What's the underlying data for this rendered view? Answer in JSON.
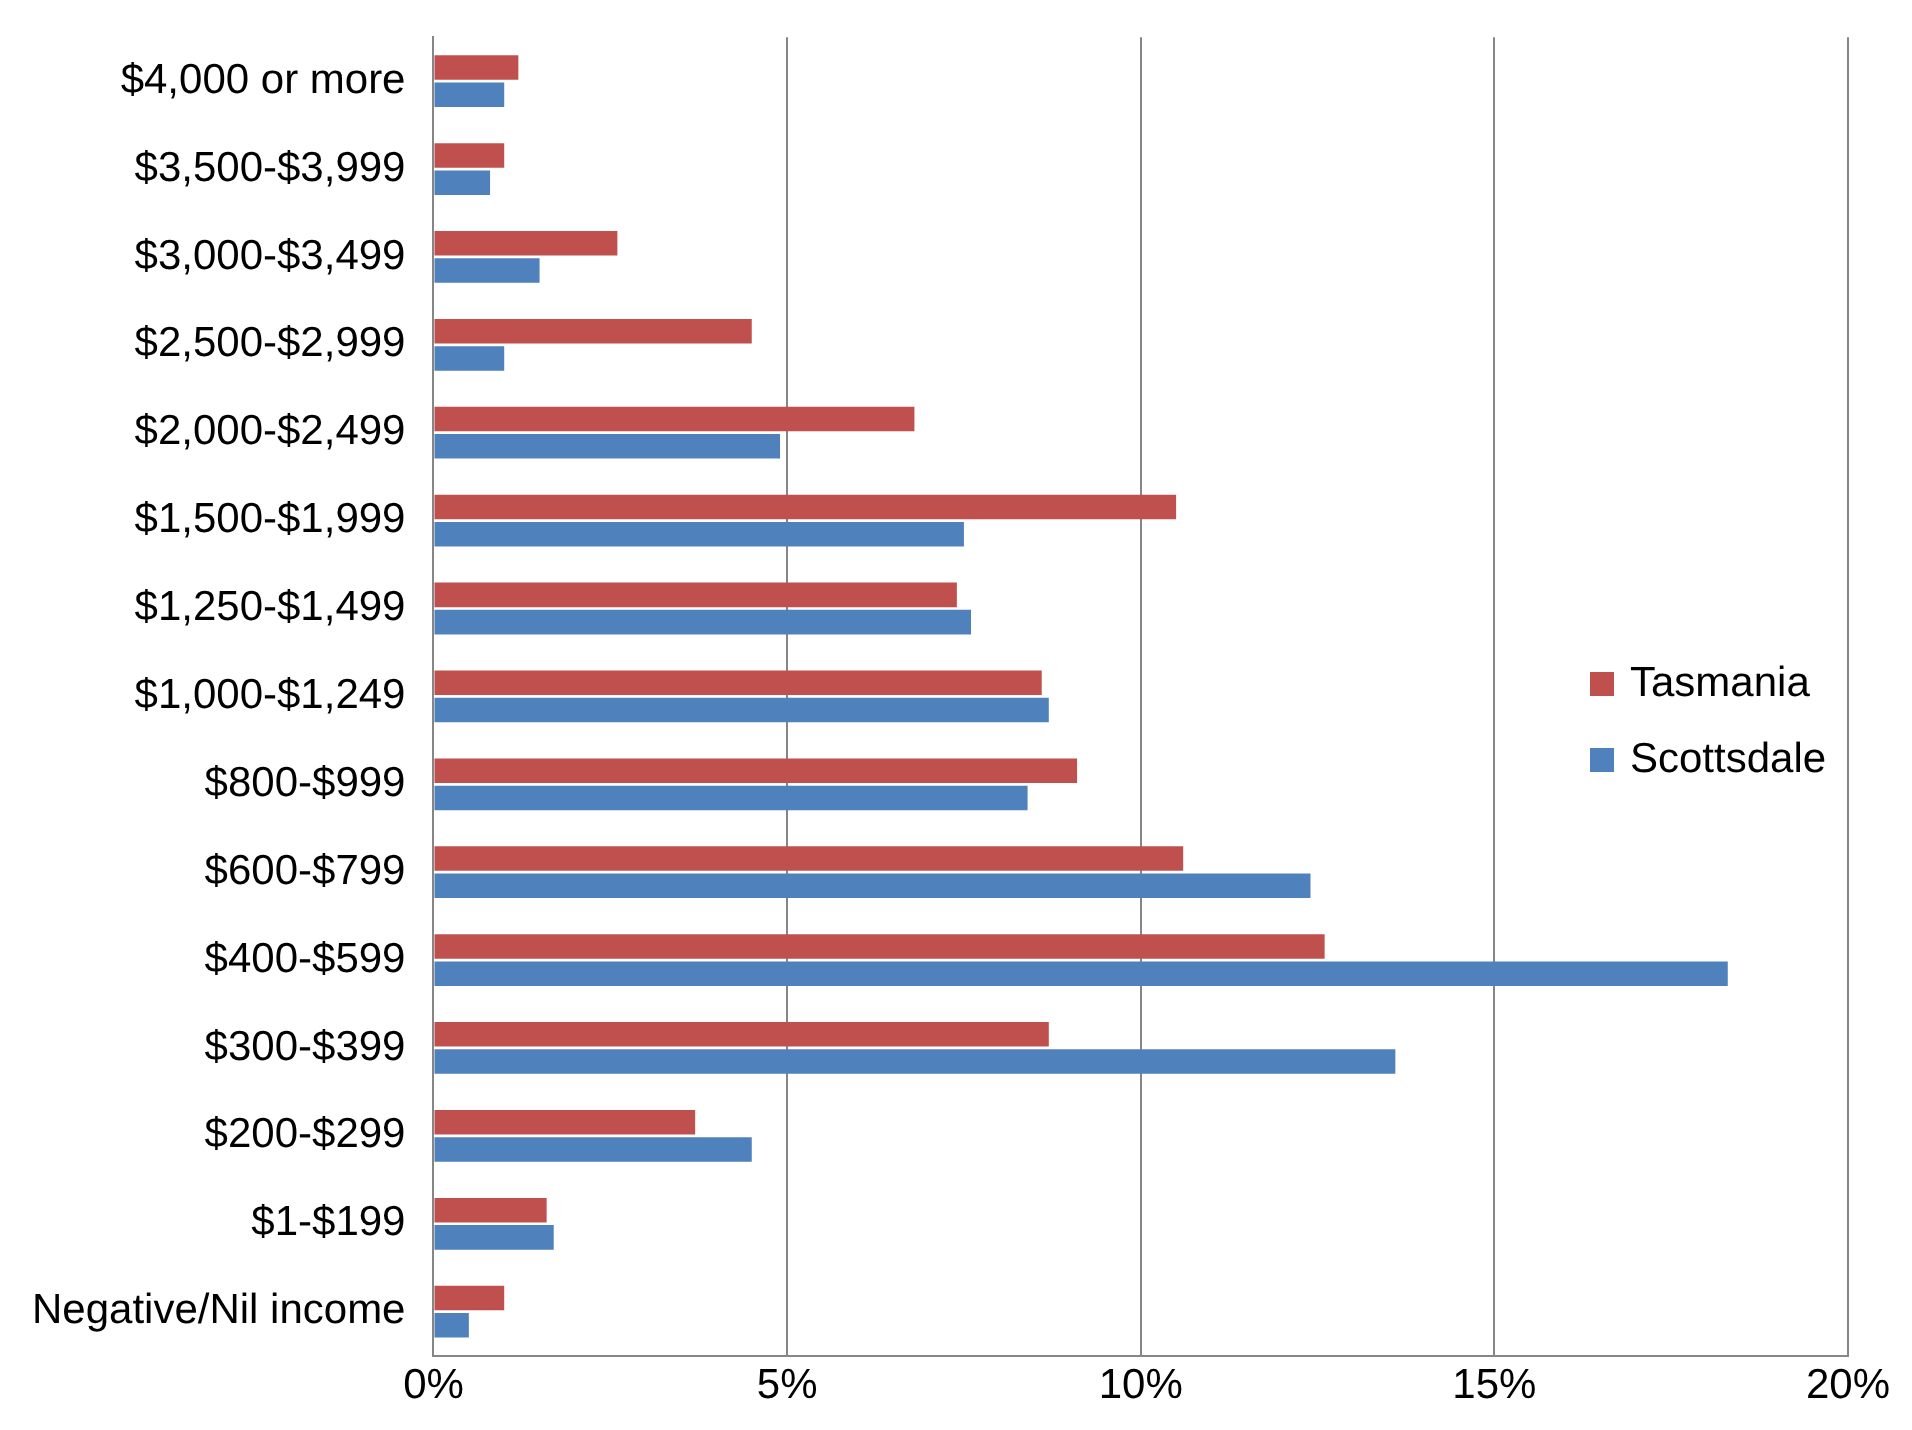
{
  "chart_data": {
    "type": "bar",
    "orientation": "horizontal",
    "categories": [
      "$4,000 or more",
      "$3,500-$3,999",
      "$3,000-$3,499",
      "$2,500-$2,999",
      "$2,000-$2,499",
      "$1,500-$1,999",
      "$1,250-$1,499",
      "$1,000-$1,249",
      "$800-$999",
      "$600-$799",
      "$400-$599",
      "$300-$399",
      "$200-$299",
      "$1-$199",
      "Negative/Nil income"
    ],
    "series": [
      {
        "name": "Tasmania",
        "color": "#c0504d",
        "values": [
          1.2,
          1.0,
          2.6,
          4.5,
          6.8,
          10.5,
          7.4,
          8.6,
          9.1,
          10.6,
          12.6,
          8.7,
          3.7,
          1.6,
          1.0
        ]
      },
      {
        "name": "Scottsdale",
        "color": "#4f81bd",
        "values": [
          1.0,
          0.8,
          1.5,
          1.0,
          4.9,
          7.5,
          7.6,
          8.7,
          8.4,
          12.4,
          18.3,
          13.6,
          4.5,
          1.7,
          0.5
        ]
      }
    ],
    "xlim": [
      0,
      20
    ],
    "xticks": [
      {
        "value": 0,
        "label": "0%"
      },
      {
        "value": 5,
        "label": "5%"
      },
      {
        "value": 10,
        "label": "10%"
      },
      {
        "value": 15,
        "label": "15%"
      },
      {
        "value": 20,
        "label": "20%"
      }
    ],
    "grid": "x",
    "legend": "right"
  }
}
